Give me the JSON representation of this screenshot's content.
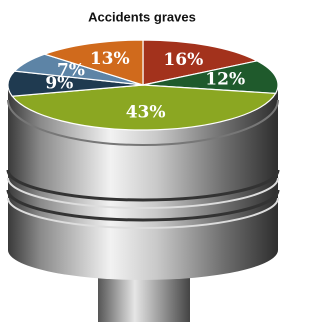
{
  "chart_data": {
    "type": "pie",
    "title": "Accidents graves",
    "categories": [
      null,
      null,
      null,
      null,
      null,
      null
    ],
    "values": [
      16,
      12,
      43,
      9,
      7,
      13
    ],
    "value_labels": [
      "16%",
      "12%",
      "43%",
      "9%",
      "7%",
      "13%"
    ],
    "colors": [
      "#a3321c",
      "#1f5a2c",
      "#8ba722",
      "#1f3a50",
      "#5d84a6",
      "#d06a1c"
    ]
  }
}
